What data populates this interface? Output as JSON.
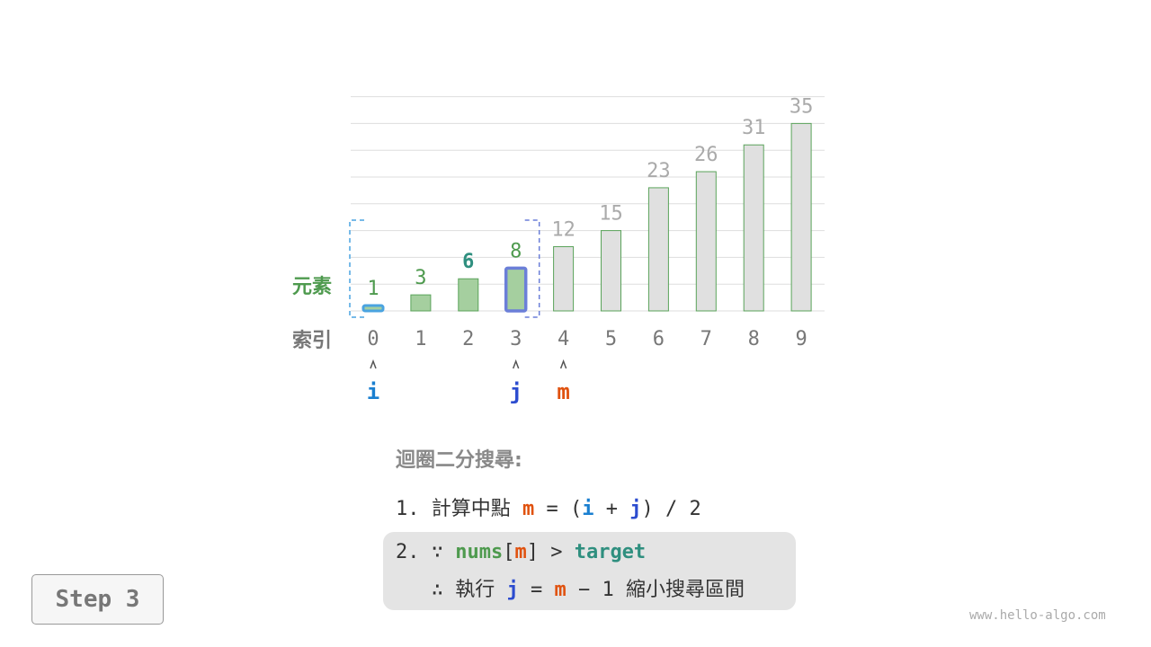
{
  "labels": {
    "element": "元素",
    "index": "索引"
  },
  "array": [
    1,
    3,
    6,
    8,
    12,
    15,
    23,
    26,
    31,
    35
  ],
  "highlight": {
    "active_range": [
      0,
      3
    ],
    "i": 0,
    "j": 3,
    "m": 4,
    "emphasized_value_index": 2
  },
  "pointers": {
    "i": "i",
    "j": "j",
    "m": "m"
  },
  "colors": {
    "i": "#1a7fd0",
    "j": "#2c4ccf",
    "m": "#e0520f",
    "active_bar": "#a5cf9f",
    "inactive_bar": "#e0e0e0",
    "bar_stroke": "#5aa35a"
  },
  "text": {
    "title": "迴圈二分搜尋:",
    "l1_prefix": "1. 計算中點 ",
    "l1_m": "m",
    "l1_eq": " = (",
    "l1_i": "i",
    "l1_plus": " + ",
    "l1_j": "j",
    "l1_end": ") / 2",
    "l2_prefix": "2. ∵ ",
    "l2_nums": "nums",
    "l2_lb": "[",
    "l2_m": "m",
    "l2_rb": "] > ",
    "l2_target": "target",
    "l3_prefix": "   ∴ 執行 ",
    "l3_j": "j",
    "l3_eq": " = ",
    "l3_m": "m",
    "l3_end": " − 1 縮小搜尋區間"
  },
  "step_label": "Step 3",
  "watermark": "www.hello-algo.com"
}
